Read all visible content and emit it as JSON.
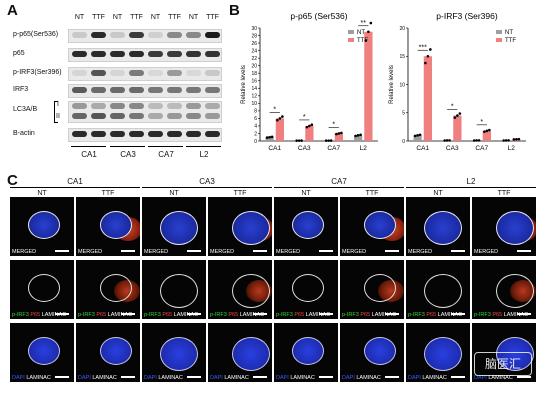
{
  "panel_a": {
    "letter": "A",
    "lane_headers": [
      "NT",
      "TTF",
      "NT",
      "TTF",
      "NT",
      "TTF",
      "NT",
      "TTF"
    ],
    "row_labels": [
      "p-p65(Ser536)",
      "p65",
      "p-IRF3(Ser396)",
      "IRF3",
      "LC3A/B",
      "I",
      "II",
      "B-actin"
    ],
    "group_labels": [
      "CA1",
      "CA3",
      "CA7",
      "L2"
    ]
  },
  "panel_b": {
    "letter": "B",
    "colors": {
      "nt": "#9e9e9e",
      "ttf": "#f08080"
    },
    "legend": {
      "nt": "NT",
      "ttf": "TTF"
    }
  },
  "chart_data": [
    {
      "type": "bar",
      "title": "p-p65 (Ser536)",
      "ylabel": "Relative levels",
      "categories": [
        "CA1",
        "CA3",
        "CA7",
        "L2"
      ],
      "ylim": [
        0,
        30
      ],
      "yticks": [
        0,
        2,
        4,
        6,
        8,
        10,
        12,
        14,
        16,
        18,
        20,
        22,
        24,
        26,
        28,
        30
      ],
      "series": [
        {
          "name": "NT",
          "values": [
            1,
            0.1,
            0.1,
            1.5
          ]
        },
        {
          "name": "TTF",
          "values": [
            6,
            4,
            2,
            29
          ]
        }
      ],
      "significance": [
        "*",
        "*",
        "*",
        "**"
      ],
      "legend_position": "top-right"
    },
    {
      "type": "bar",
      "title": "p-IRF3 (Ser396)",
      "ylabel": "Relative levels",
      "categories": [
        "CA1",
        "CA3",
        "CA7",
        "L2"
      ],
      "ylim": [
        0,
        20
      ],
      "yticks": [
        0,
        5,
        10,
        15,
        20
      ],
      "series": [
        {
          "name": "NT",
          "values": [
            1,
            0.1,
            0.1,
            0.1
          ]
        },
        {
          "name": "TTF",
          "values": [
            15,
            4.5,
            1.8,
            0.3
          ]
        }
      ],
      "significance": [
        "***",
        "*",
        "*",
        ""
      ],
      "legend_position": "top-right"
    }
  ],
  "panel_c": {
    "letter": "C",
    "groups": [
      "CA1",
      "CA3",
      "CA7",
      "L2"
    ],
    "conditions": [
      "NT",
      "TTF"
    ],
    "row_labels": {
      "merged": "MERGED",
      "row2_a": "p-IRF3",
      "row2_b": "P65",
      "row2_c": "LAMINAC",
      "row3_a": "DAPI",
      "row3_b": "LAMINAC"
    },
    "watermark": "脑医汇"
  }
}
